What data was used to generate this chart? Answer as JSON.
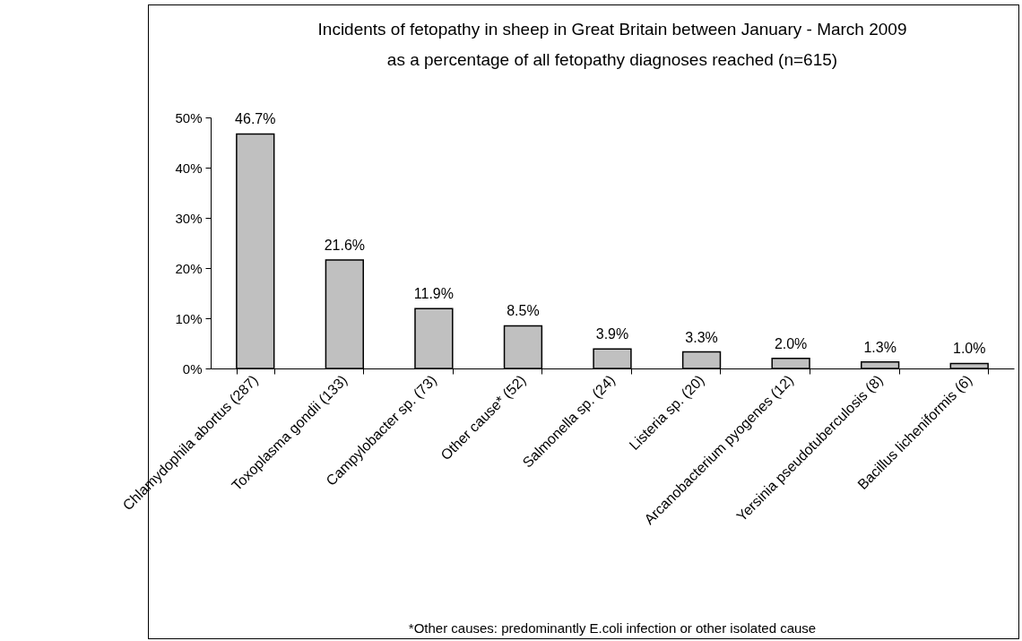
{
  "chart_data": {
    "type": "bar",
    "title": "Incidents of fetopathy in sheep in Great Britain between January - March 2009\nas a percentage of all fetopathy diagnoses reached (n=615)",
    "categories": [
      "Chlamydophila abortus (287)",
      "Toxoplasma gondii (133)",
      "Campylobacter sp. (73)",
      "Other cause* (52)",
      "Salmonella sp. (24)",
      "Listeria sp. (20)",
      "Arcanobacterium pyogenes (12)",
      "Yersinia pseudotuberculosis (8)",
      "Bacillus licheniformis (6)"
    ],
    "values": [
      46.7,
      21.6,
      11.9,
      8.5,
      3.9,
      3.3,
      2.0,
      1.3,
      1.0
    ],
    "value_labels": [
      "46.7%",
      "21.6%",
      "11.9%",
      "8.5%",
      "3.9%",
      "3.3%",
      "2.0%",
      "1.3%",
      "1.0%"
    ],
    "color": "#c0c0c0",
    "ylim": [
      0,
      50
    ],
    "yticks": [
      {
        "value": 0,
        "label": "0%"
      },
      {
        "value": 10,
        "label": "10%"
      },
      {
        "value": 20,
        "label": "20%"
      },
      {
        "value": 30,
        "label": "30%"
      },
      {
        "value": 40,
        "label": "40%"
      },
      {
        "value": 50,
        "label": "50%"
      }
    ],
    "grid": false,
    "annotations": [
      "*Other causes: predominantly E.coli infection or other isolated cause"
    ]
  }
}
